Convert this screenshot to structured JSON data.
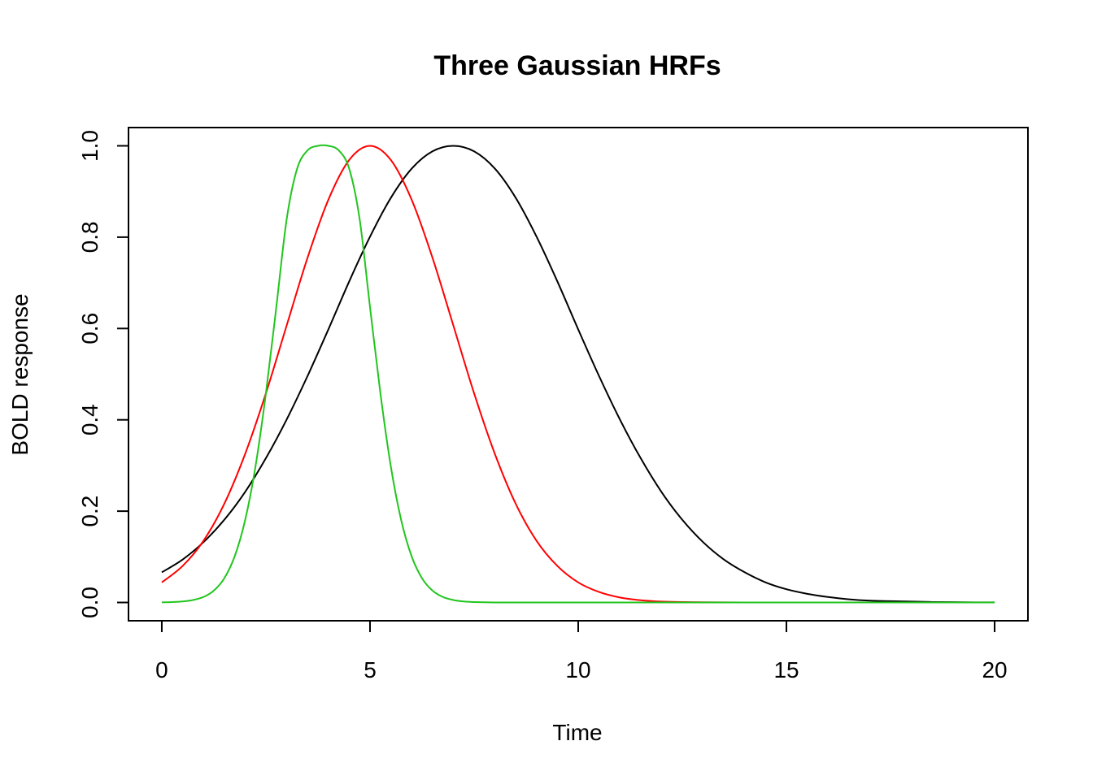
{
  "chart_data": {
    "type": "line",
    "title": "Three Gaussian HRFs",
    "xlabel": "Time",
    "ylabel": "BOLD response",
    "xlim": [
      -0.8,
      20.8
    ],
    "ylim": [
      -0.04,
      1.04
    ],
    "xticks": [
      0,
      5,
      10,
      15,
      20
    ],
    "yticks": [
      0.0,
      0.2,
      0.4,
      0.6,
      0.8,
      1.0
    ],
    "xtick_labels": [
      "0",
      "5",
      "10",
      "15",
      "20"
    ],
    "ytick_labels": [
      "0.0",
      "0.2",
      "0.4",
      "0.6",
      "0.8",
      "1.0"
    ],
    "grid": false,
    "legend": "none",
    "series": [
      {
        "color": "#000000",
        "x": [
          0,
          0.5,
          1,
          1.5,
          2,
          2.5,
          3,
          3.5,
          4,
          4.5,
          5,
          5.5,
          6,
          6.5,
          7,
          7.5,
          8,
          8.5,
          9,
          9.5,
          10,
          10.5,
          11,
          11.5,
          12,
          12.5,
          13,
          13.5,
          14,
          14.5,
          15,
          15.5,
          16,
          16.5,
          17,
          17.5,
          18,
          18.5,
          19,
          19.5,
          20
        ],
        "y": [
          0.066,
          0.094,
          0.132,
          0.181,
          0.242,
          0.316,
          0.401,
          0.496,
          0.598,
          0.703,
          0.801,
          0.886,
          0.95,
          0.988,
          1.0,
          0.988,
          0.95,
          0.886,
          0.801,
          0.703,
          0.598,
          0.496,
          0.401,
          0.316,
          0.242,
          0.181,
          0.132,
          0.094,
          0.066,
          0.044,
          0.029,
          0.019,
          0.012,
          0.007,
          0.004,
          0.003,
          0.002,
          0.001,
          0.0006,
          0.0003,
          0.0002
        ]
      },
      {
        "color": "#ff0000",
        "x": [
          0,
          0.5,
          1,
          1.5,
          2,
          2.5,
          3,
          3.5,
          4,
          4.5,
          5,
          5.5,
          6,
          6.5,
          7,
          7.5,
          8,
          8.5,
          9,
          9.5,
          10,
          10.5,
          11,
          11.5,
          12,
          12.5,
          13,
          13.5,
          14,
          14.5,
          15,
          15.5,
          16,
          16.5,
          17,
          17.5,
          18,
          18.5,
          19,
          19.5,
          20
        ],
        "y": [
          0.044,
          0.08,
          0.135,
          0.216,
          0.325,
          0.458,
          0.607,
          0.755,
          0.882,
          0.969,
          1.0,
          0.969,
          0.882,
          0.755,
          0.607,
          0.458,
          0.325,
          0.216,
          0.135,
          0.08,
          0.044,
          0.023,
          0.011,
          0.005,
          0.002,
          0.001,
          0.0004,
          0.0002,
          0.0001,
          0,
          0,
          0,
          0,
          0,
          0,
          0,
          0,
          0,
          0,
          0,
          0
        ]
      },
      {
        "color": "#22c51e",
        "x": [
          0,
          0.25,
          0.5,
          0.75,
          1,
          1.25,
          1.5,
          1.75,
          2,
          2.25,
          2.5,
          2.75,
          3,
          3.25,
          3.5,
          3.75,
          4,
          4.25,
          4.5,
          4.75,
          5,
          5.25,
          5.5,
          5.75,
          6,
          6.25,
          6.5,
          6.75,
          7,
          7.25,
          7.5,
          8,
          9,
          10,
          12,
          14,
          16,
          18,
          20
        ],
        "y": [
          0.0003,
          0.0009,
          0.0022,
          0.0054,
          0.012,
          0.026,
          0.053,
          0.101,
          0.18,
          0.298,
          0.458,
          0.647,
          0.84,
          0.95,
          0.99,
          1.0,
          1.0,
          0.99,
          0.95,
          0.84,
          0.647,
          0.458,
          0.298,
          0.18,
          0.101,
          0.053,
          0.026,
          0.012,
          0.0054,
          0.0022,
          0.0009,
          0.0001,
          0,
          0,
          0,
          0,
          0,
          0,
          0
        ]
      }
    ]
  }
}
